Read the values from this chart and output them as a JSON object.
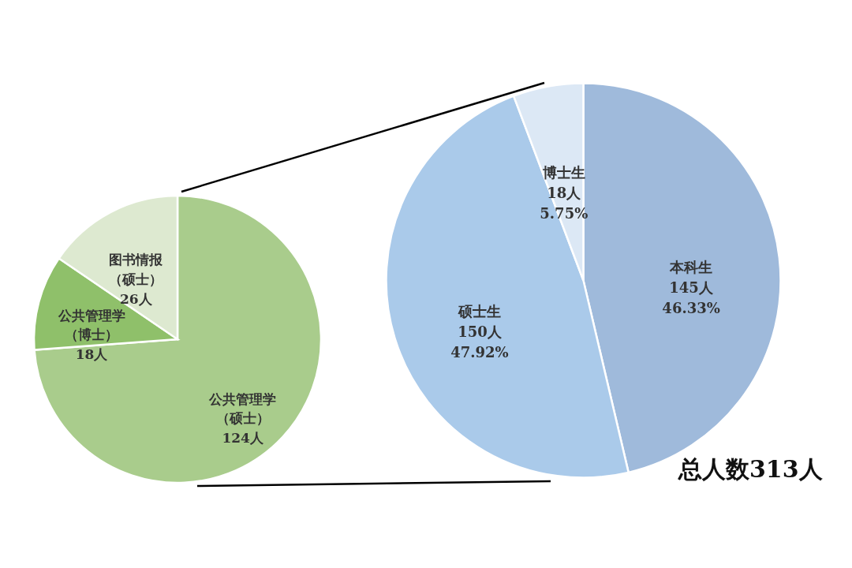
{
  "chart_data": [
    {
      "type": "pie",
      "categories": [
        "公共管理学（硕士）",
        "公共管理学（博士）",
        "图书情报（硕士）"
      ],
      "values": [
        124,
        18,
        26
      ],
      "colors": [
        "#a9cc8c",
        "#8fc06a",
        "#dde9d0"
      ],
      "value_labels": [
        "124人",
        "18人",
        "26人"
      ]
    },
    {
      "type": "pie",
      "categories": [
        "本科生",
        "硕士生",
        "博士生"
      ],
      "values": [
        145,
        150,
        18
      ],
      "colors": [
        "#9fbadb",
        "#aacaea",
        "#dce8f5"
      ],
      "value_labels": [
        "145人\n46.33%",
        "150人\n47.92%",
        "18人\n5.75%"
      ],
      "annotations": [
        "总人数313人"
      ]
    }
  ]
}
